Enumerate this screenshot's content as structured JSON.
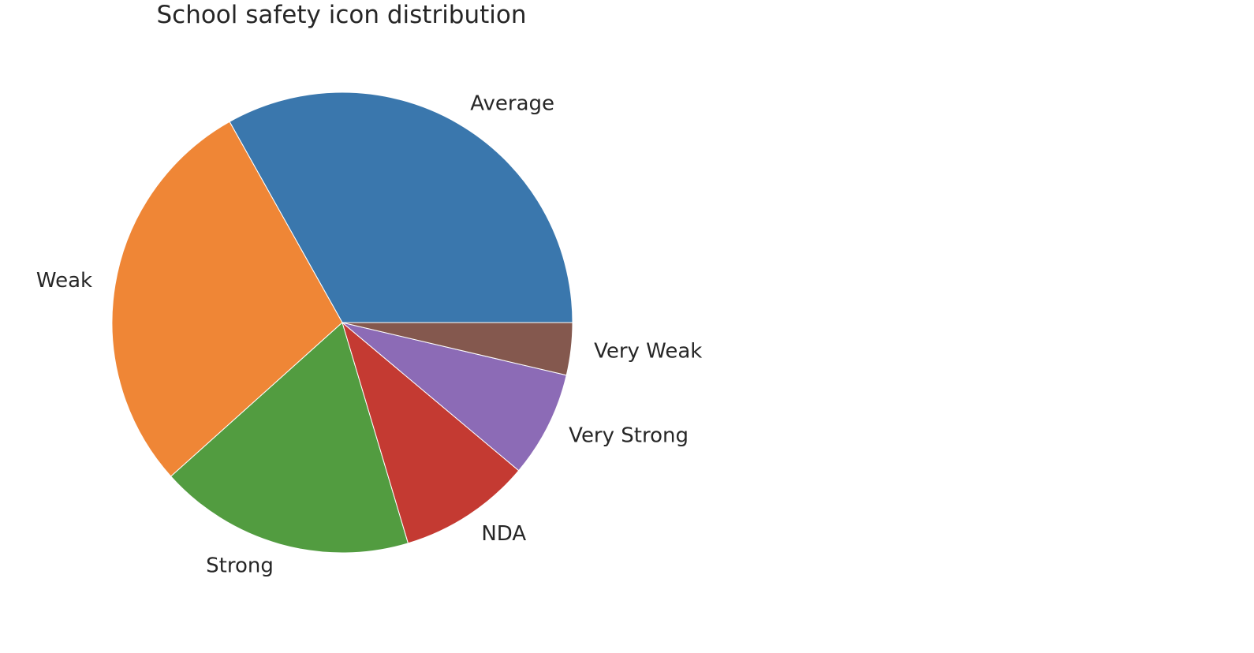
{
  "chart_data": {
    "type": "pie",
    "title": "School safety icon distribution",
    "start_angle_deg": 0,
    "direction": "counterclockwise",
    "slices": [
      {
        "label": "Average",
        "value": 34.3,
        "color": "#3a77ad"
      },
      {
        "label": "Weak",
        "value": 29.5,
        "color": "#ef8636"
      },
      {
        "label": "Strong",
        "value": 18.6,
        "color": "#529c40"
      },
      {
        "label": "NDA",
        "value": 9.6,
        "color": "#c43a32"
      },
      {
        "label": "Very Strong",
        "value": 7.7,
        "color": "#8c6bb6"
      },
      {
        "label": "Very Weak",
        "value": 3.8,
        "color": "#84584e"
      }
    ]
  }
}
